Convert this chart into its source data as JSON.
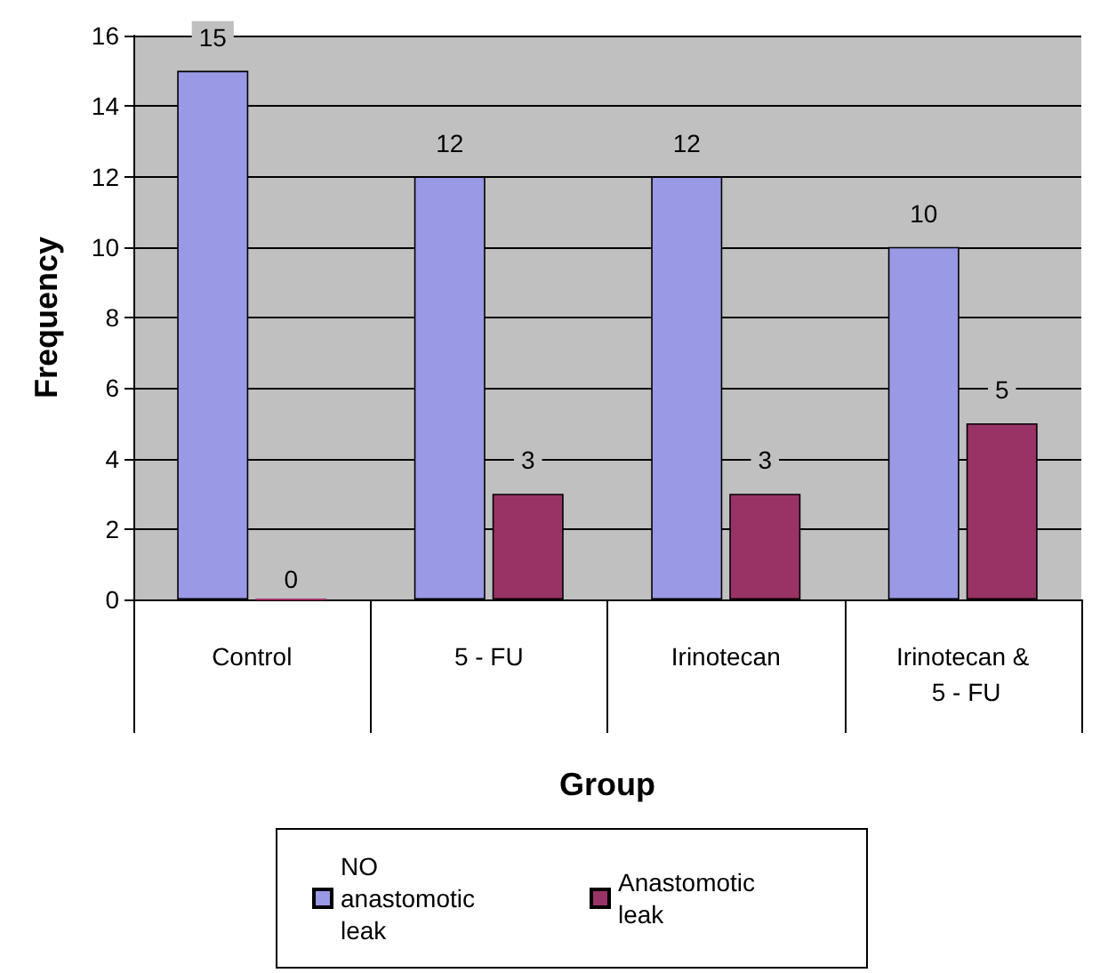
{
  "chart_data": {
    "type": "bar",
    "xlabel": "Group",
    "ylabel": "Frequency",
    "categories": [
      "Control",
      "5 - FU",
      "Irinotecan",
      "Irinotecan & 5 - FU"
    ],
    "series": [
      {
        "name": "NO anastomotic leak",
        "color": "#9999e6",
        "values": [
          15,
          12,
          12,
          10
        ]
      },
      {
        "name": "Anastomotic leak",
        "color": "#993366",
        "values": [
          0,
          3,
          3,
          5
        ]
      }
    ],
    "ylim": [
      0,
      16
    ],
    "yticks": [
      0,
      2,
      4,
      6,
      8,
      10,
      12,
      14,
      16
    ],
    "grid": "y",
    "legend": "bottom",
    "data_labels": true
  }
}
